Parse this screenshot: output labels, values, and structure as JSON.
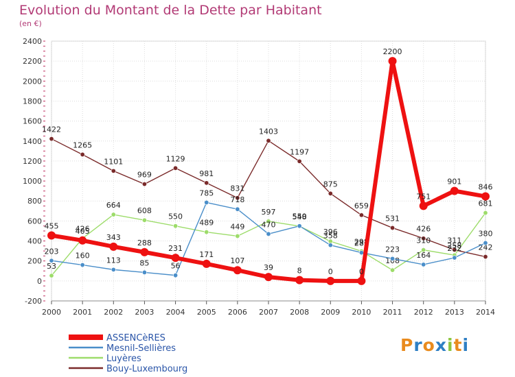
{
  "title": "Evolution du Montant de la Dette par Habitant",
  "unit": "(en €)",
  "logo": "Proxiti",
  "chart_data": {
    "type": "line",
    "x": [
      2000,
      2001,
      2002,
      2003,
      2004,
      2005,
      2006,
      2007,
      2008,
      2009,
      2010,
      2011,
      2012,
      2013,
      2014
    ],
    "ylim": [
      -200,
      2400
    ],
    "yticks": [
      -200,
      0,
      200,
      400,
      600,
      800,
      1000,
      1200,
      1400,
      1600,
      1800,
      2000,
      2200,
      2400
    ],
    "grid": true,
    "legend": "bottom-left",
    "series": [
      {
        "name": "Bouy-Luxembourg",
        "color": "#7a2a2a",
        "width": 1.4,
        "values": [
          1422,
          1265,
          1101,
          969,
          1129,
          981,
          831,
          1403,
          1197,
          875,
          659,
          531,
          426,
          311,
          242
        ]
      },
      {
        "name": "Luyères",
        "color": "#9ddc6a",
        "width": 1.4,
        "values": [
          53,
          426,
          664,
          608,
          550,
          489,
          449,
          597,
          548,
          396,
          298,
          108,
          310,
          258,
          681
        ]
      },
      {
        "name": "Mesnil-Sellières",
        "color": "#4a8ec9",
        "width": 1.4,
        "values": [
          203,
          160,
          113,
          85,
          56,
          785,
          718,
          470,
          550,
          358,
          283,
          223,
          164,
          232,
          380
        ]
      },
      {
        "name": "ASSENCèRES",
        "color": "#ee1111",
        "width": 6,
        "values": [
          455,
          405,
          343,
          288,
          231,
          171,
          107,
          39,
          8,
          0,
          0,
          2200,
          751,
          901,
          846
        ]
      }
    ]
  }
}
